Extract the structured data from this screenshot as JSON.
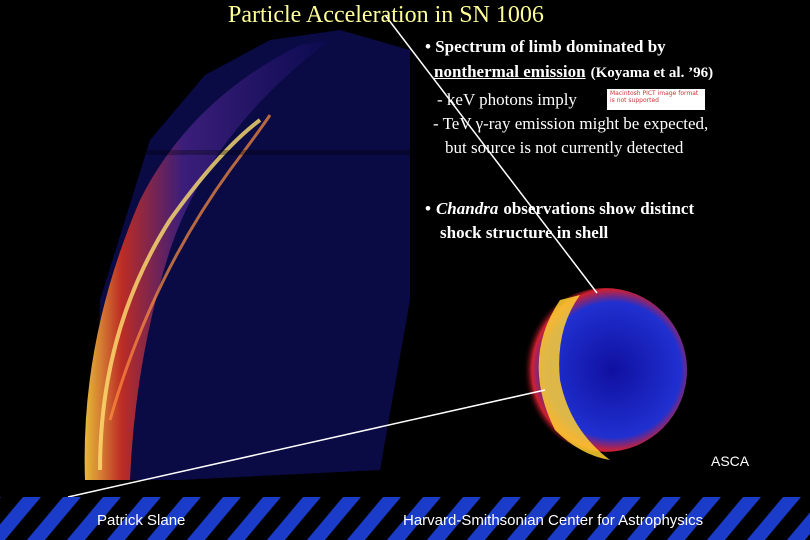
{
  "title": "Particle Acceleration in SN 1006",
  "bullets": [
    {
      "lines": [
        [
          "• Spectrum of limb dominated by"
        ],
        [
          "nonthermal emission",
          "(Koyama et al. ’96)"
        ]
      ]
    },
    {
      "lines": [
        [
          "- keV photons imply"
        ],
        [
          "- TeV γ-ray emission might be expected,"
        ],
        [
          "but source is not currently detected"
        ]
      ]
    },
    {
      "lines": [
        [
          "•",
          "Chandra",
          "observations show distinct"
        ],
        [
          "shock structure in shell"
        ]
      ]
    }
  ],
  "placeholder": "Macintosh PICT image format is not supported",
  "image_label": "ASCA",
  "footer": {
    "left": "Patrick Slane",
    "right": "Harvard-Smithsonian Center for Astrophysics"
  }
}
